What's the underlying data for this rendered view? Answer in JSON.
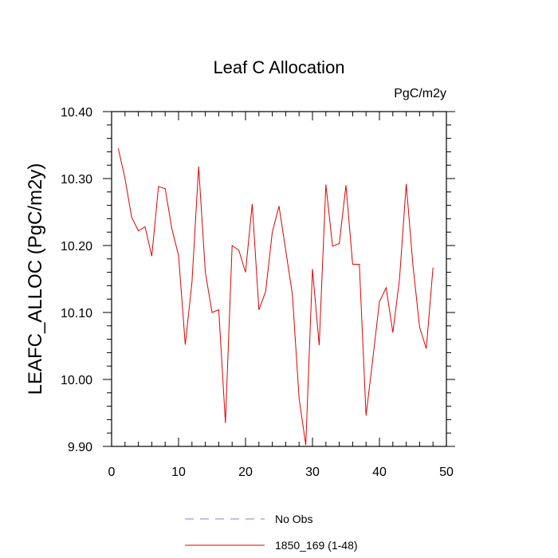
{
  "chart_data": {
    "type": "line",
    "title": "Leaf C Allocation",
    "units": "PgC/m2y",
    "xlabel": "",
    "ylabel": "LEAFC_ALLOC  (PgC/m2y)",
    "xlim": [
      0,
      50
    ],
    "ylim": [
      9.9,
      10.4
    ],
    "x_ticks": [
      0,
      10,
      20,
      30,
      40,
      50
    ],
    "x_tick_labels": [
      "0",
      "10",
      "20",
      "30",
      "40",
      "50"
    ],
    "y_ticks": [
      9.9,
      10.0,
      10.1,
      10.2,
      10.3,
      10.4
    ],
    "y_tick_labels": [
      "9.90",
      "10.00",
      "10.10",
      "10.20",
      "10.30",
      "10.40"
    ],
    "legend_position": "bottom-center",
    "legend": [
      {
        "label": "No Obs",
        "color": "#8080e0",
        "dash": true
      },
      {
        "label": "1850_169 (1-48)",
        "color": "#e00000",
        "dash": false
      }
    ],
    "series": [
      {
        "name": "1850_169 (1-48)",
        "color": "#e00000",
        "x": [
          1,
          2,
          3,
          4,
          5,
          6,
          7,
          8,
          9,
          10,
          11,
          12,
          13,
          14,
          15,
          16,
          17,
          18,
          19,
          20,
          21,
          22,
          23,
          24,
          25,
          26,
          27,
          28,
          29,
          30,
          31,
          32,
          33,
          34,
          35,
          36,
          37,
          38,
          39,
          40,
          41,
          42,
          43,
          44,
          45,
          46,
          47,
          48
        ],
        "values": [
          10.345,
          10.3,
          10.242,
          10.222,
          10.228,
          10.184,
          10.288,
          10.285,
          10.225,
          10.185,
          10.052,
          10.145,
          10.318,
          10.16,
          10.1,
          10.104,
          9.935,
          10.2,
          10.193,
          10.16,
          10.262,
          10.104,
          10.131,
          10.22,
          10.259,
          10.193,
          10.127,
          9.972,
          9.902,
          10.165,
          10.051,
          10.291,
          10.199,
          10.203,
          10.29,
          10.172,
          10.172,
          9.946,
          10.03,
          10.116,
          10.137,
          10.07,
          10.15,
          10.292,
          10.171,
          10.078,
          10.046,
          10.167
        ]
      }
    ]
  }
}
